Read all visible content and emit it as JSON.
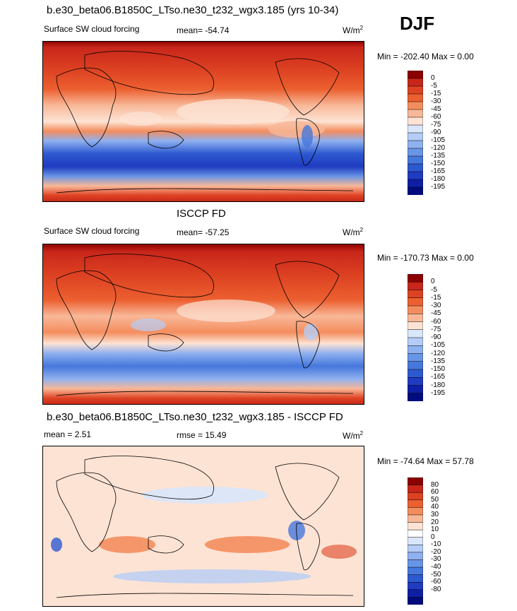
{
  "season": "DJF",
  "panels": [
    {
      "title": "b.e30_beta06.B1850C_LTso.ne30_t232_wgx3.185 (yrs 10-34)",
      "left_label": "Surface SW cloud forcing",
      "stat_label": "mean=  -54.74",
      "units_base": "W/m",
      "units_exp": "2",
      "minmax": "Min = -202.40 Max =   0.00",
      "colorbar": {
        "colors": [
          "#8b0000",
          "#c8261a",
          "#dd4222",
          "#ec6030",
          "#f48d5e",
          "#f8b898",
          "#fde3d4",
          "#d9e6fb",
          "#b5cdf6",
          "#8fb1ef",
          "#6895e6",
          "#4677dc",
          "#2d59d0",
          "#1f3bc0",
          "#0e1fa6",
          "#000c7d"
        ],
        "labels": [
          "0",
          "-5",
          "-15",
          "-30",
          "-45",
          "-60",
          "-75",
          "-90",
          "-105",
          "-120",
          "-135",
          "-150",
          "-165",
          "-180",
          "-195"
        ]
      }
    },
    {
      "title": "ISCCP FD",
      "left_label": "Surface SW cloud forcing",
      "stat_label": "mean=  -57.25",
      "units_base": "W/m",
      "units_exp": "2",
      "minmax": "Min = -170.73 Max =   0.00",
      "colorbar": {
        "colors": [
          "#8b0000",
          "#c8261a",
          "#dd4222",
          "#ec6030",
          "#f48d5e",
          "#f8b898",
          "#fde3d4",
          "#d9e6fb",
          "#b5cdf6",
          "#8fb1ef",
          "#6895e6",
          "#4677dc",
          "#2d59d0",
          "#1f3bc0",
          "#0e1fa6",
          "#000c7d"
        ],
        "labels": [
          "0",
          "-5",
          "-15",
          "-30",
          "-45",
          "-60",
          "-75",
          "-90",
          "-105",
          "-120",
          "-135",
          "-150",
          "-165",
          "-180",
          "-195"
        ]
      }
    },
    {
      "title": "b.e30_beta06.B1850C_LTso.ne30_t232_wgx3.185 - ISCCP FD",
      "left_label": "mean =   2.51",
      "stat_label": "rmse =  15.49",
      "units_base": "W/m",
      "units_exp": "2",
      "minmax": "Min = -74.64 Max =  57.78",
      "colorbar": {
        "colors": [
          "#8b0000",
          "#c8261a",
          "#dd4222",
          "#ec6030",
          "#f48d5e",
          "#f8b898",
          "#fde3d4",
          "#ffffff",
          "#d9e6fb",
          "#b5cdf6",
          "#8fb1ef",
          "#6895e6",
          "#4677dc",
          "#2d59d0",
          "#1f3bc0",
          "#0e1fa6",
          "#000c7d"
        ],
        "labels": [
          "80",
          "60",
          "50",
          "40",
          "30",
          "20",
          "10",
          "0",
          "-10",
          "-20",
          "-30",
          "-40",
          "-50",
          "-60",
          "-80"
        ]
      }
    }
  ]
}
